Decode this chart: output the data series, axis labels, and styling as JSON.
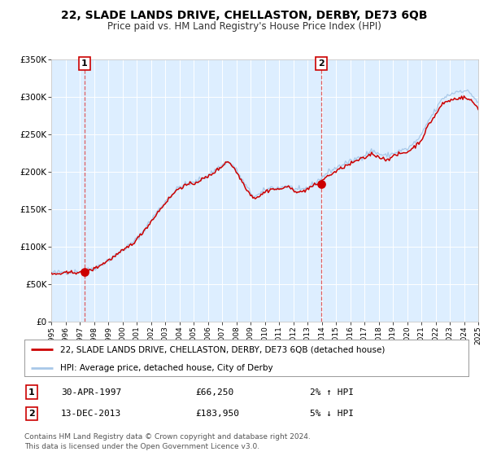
{
  "title": "22, SLADE LANDS DRIVE, CHELLASTON, DERBY, DE73 6QB",
  "subtitle": "Price paid vs. HM Land Registry's House Price Index (HPI)",
  "sale1_date": "30-APR-1997",
  "sale1_price": 66250,
  "sale1_year": 1997.33,
  "sale1_pct": "2% ↑ HPI",
  "sale2_date": "13-DEC-2013",
  "sale2_price": 183950,
  "sale2_year": 2013.95,
  "sale2_pct": "5% ↓ HPI",
  "legend_line1": "22, SLADE LANDS DRIVE, CHELLASTON, DERBY, DE73 6QB (detached house)",
  "legend_line2": "HPI: Average price, detached house, City of Derby",
  "footer1": "Contains HM Land Registry data © Crown copyright and database right 2024.",
  "footer2": "This data is licensed under the Open Government Licence v3.0.",
  "hpi_color": "#a8c8e8",
  "price_color": "#cc0000",
  "vline_color": "#dd4444",
  "bg_color": "#ddeeff",
  "ylim": [
    0,
    350000
  ],
  "yticks": [
    0,
    50000,
    100000,
    150000,
    200000,
    250000,
    300000,
    350000
  ],
  "ytick_labels": [
    "£0",
    "£50K",
    "£100K",
    "£150K",
    "£200K",
    "£250K",
    "£300K",
    "£350K"
  ],
  "xlim_start": 1995,
  "xlim_end": 2025,
  "xticks": [
    1995,
    1996,
    1997,
    1998,
    1999,
    2000,
    2001,
    2002,
    2003,
    2004,
    2005,
    2006,
    2007,
    2008,
    2009,
    2010,
    2011,
    2012,
    2013,
    2014,
    2015,
    2016,
    2017,
    2018,
    2019,
    2020,
    2021,
    2022,
    2023,
    2024,
    2025
  ]
}
